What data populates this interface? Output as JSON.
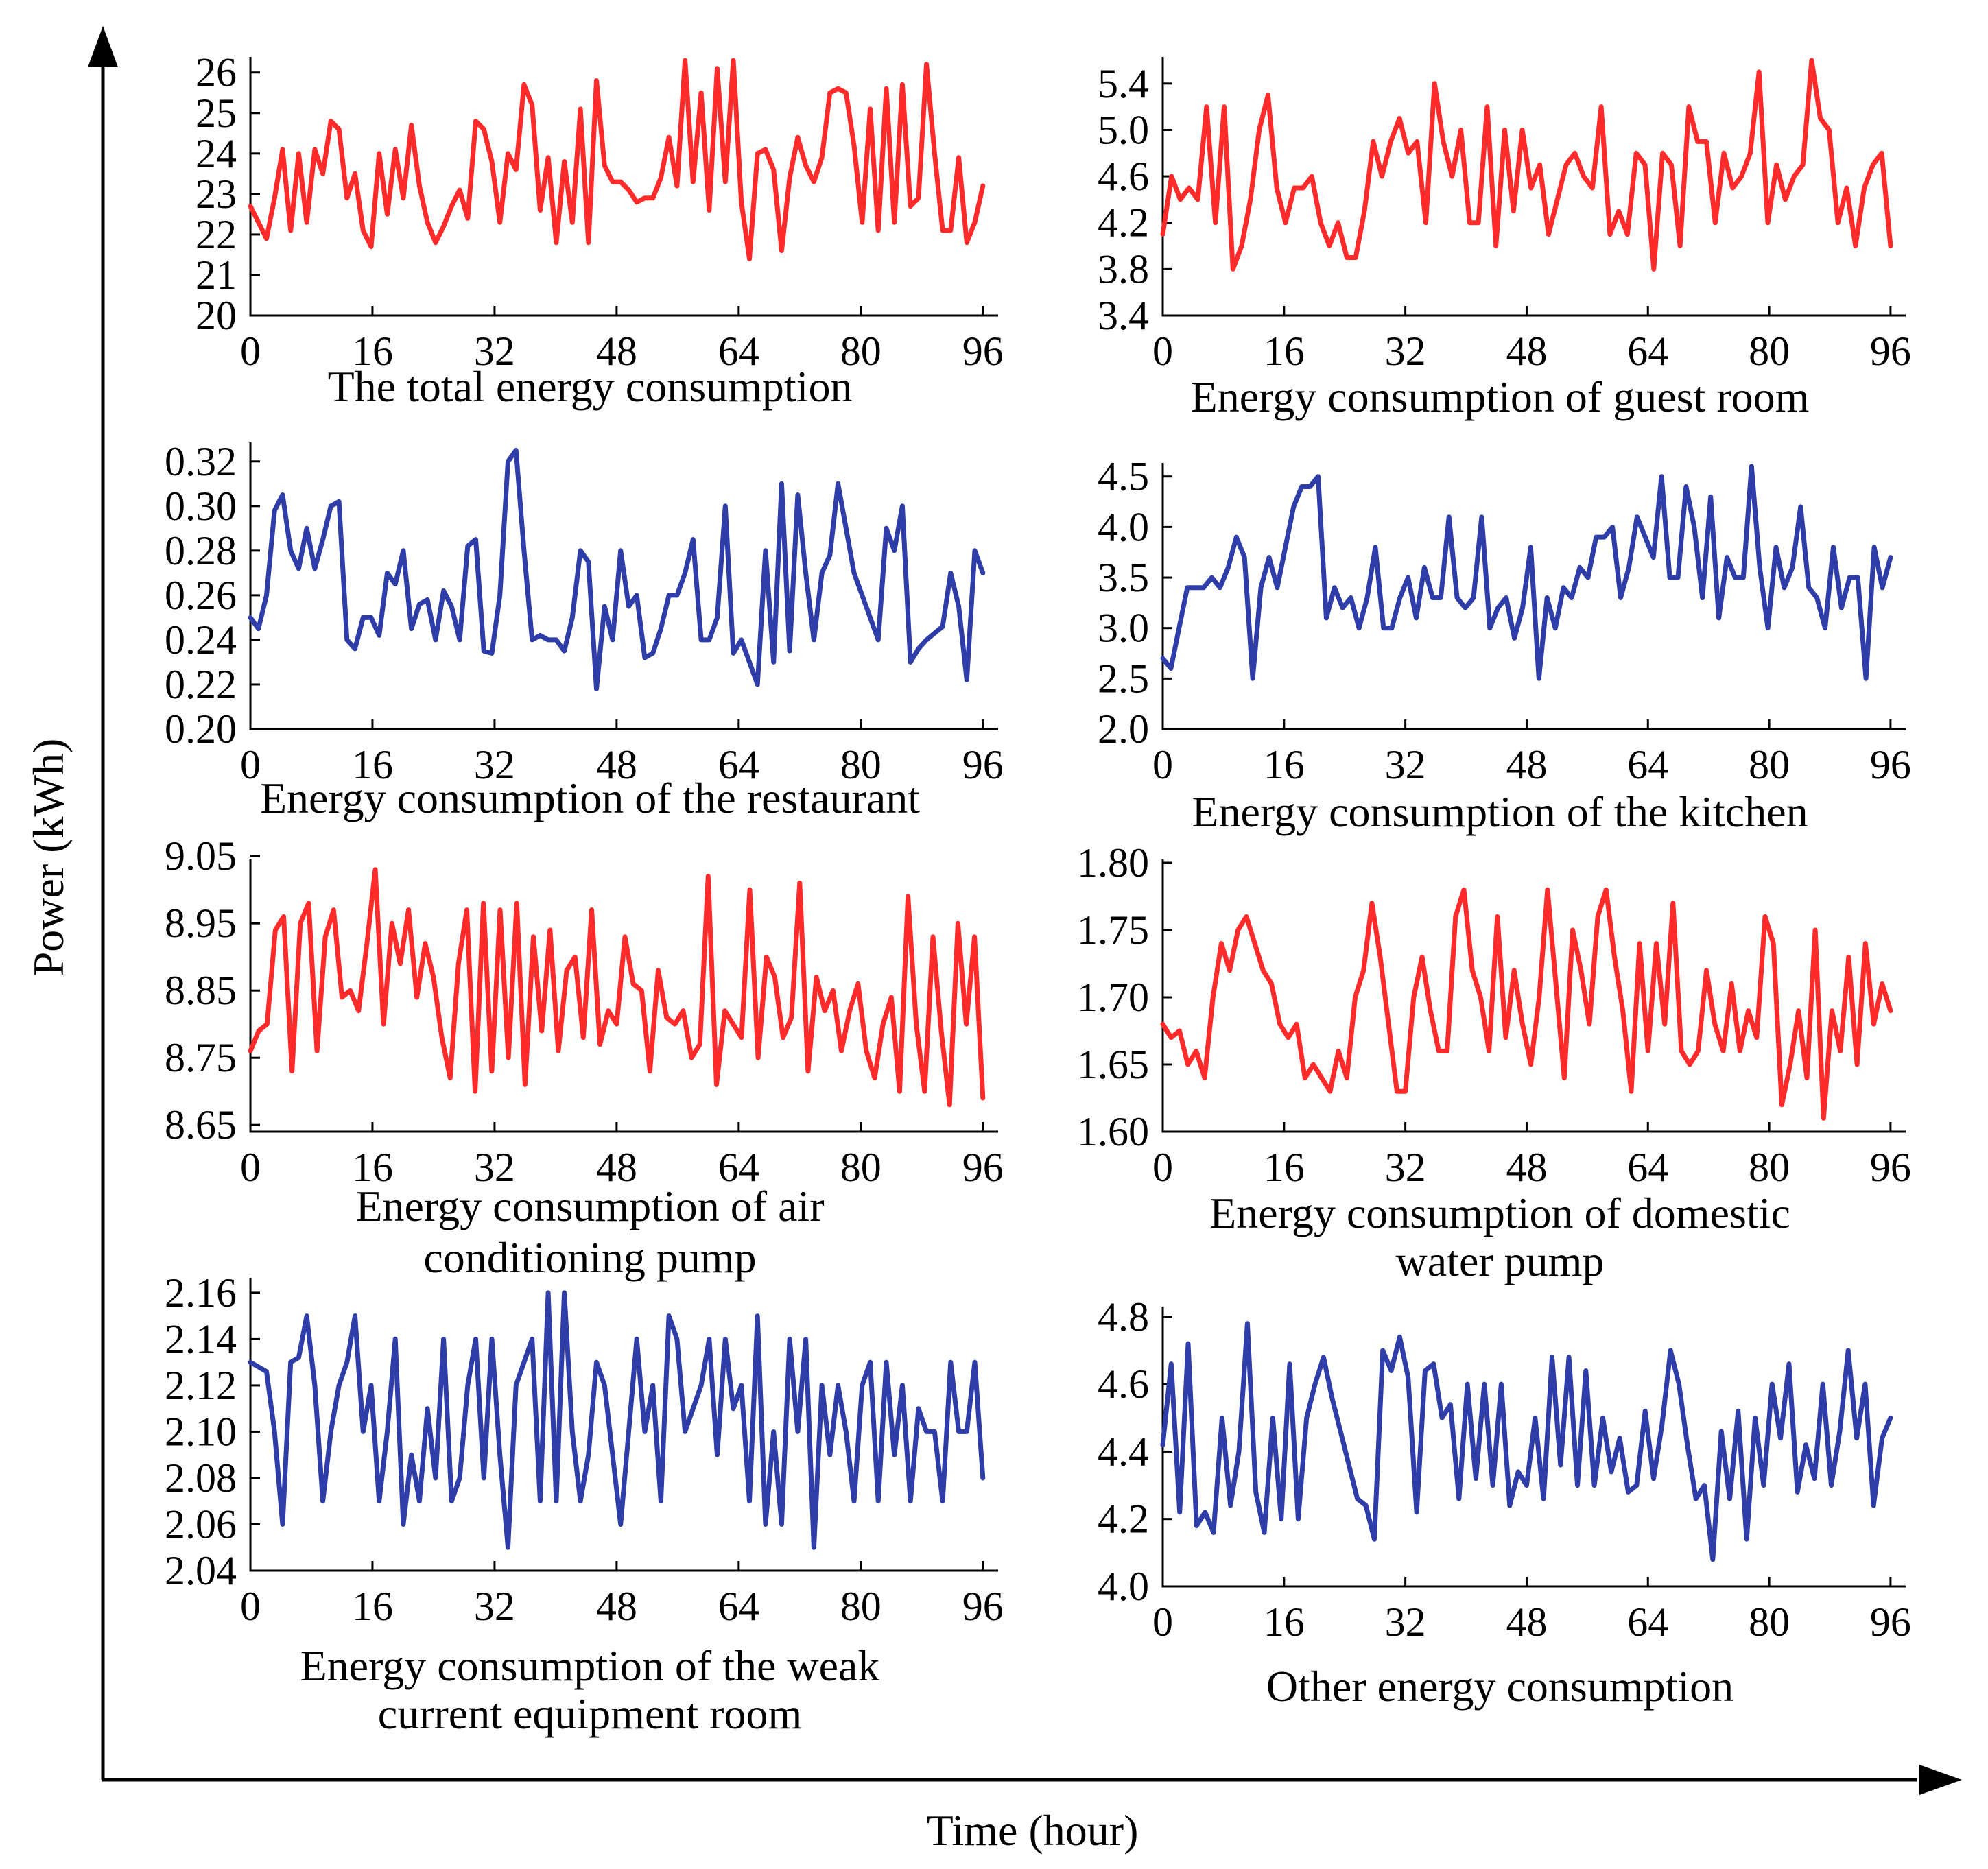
{
  "figure": {
    "ylabel": "Power (kWh)",
    "xlabel": "Time (hour)"
  },
  "colors": {
    "red": "#ff2b2b",
    "blue": "#2e3da8"
  },
  "chart_data": [
    {
      "type": "line",
      "title": [
        "The total energy consumption"
      ],
      "color": "red",
      "xlim": [
        0,
        98
      ],
      "ylim": [
        20,
        26.3
      ],
      "xticks": [
        "0",
        "16",
        "32",
        "48",
        "64",
        "80",
        "96"
      ],
      "yticks": [
        "20",
        "21",
        "22",
        "23",
        "24",
        "25",
        "26"
      ],
      "values": [
        22.7,
        22.3,
        21.9,
        22.9,
        24.1,
        22.1,
        24.0,
        22.3,
        24.1,
        23.5,
        24.8,
        24.6,
        22.9,
        23.5,
        22.1,
        21.7,
        24.0,
        22.5,
        24.1,
        22.9,
        24.7,
        23.2,
        22.3,
        21.8,
        22.2,
        22.7,
        23.1,
        22.4,
        24.8,
        24.6,
        23.8,
        22.3,
        24.0,
        23.6,
        25.7,
        25.2,
        22.6,
        23.9,
        21.8,
        23.8,
        22.3,
        25.1,
        21.8,
        25.8,
        23.7,
        23.3,
        23.3,
        23.1,
        22.8,
        22.9,
        22.9,
        23.4,
        24.4,
        23.2,
        26.3,
        23.3,
        25.5,
        22.6,
        26.1,
        23.3,
        26.3,
        22.8,
        21.4,
        24.0,
        24.1,
        23.6,
        21.6,
        23.4,
        24.4,
        23.7,
        23.3,
        23.9,
        25.5,
        25.6,
        25.5,
        24.2,
        22.3,
        25.1,
        22.1,
        25.6,
        22.3,
        25.7,
        22.7,
        22.9,
        26.2,
        24.0,
        22.1,
        22.1,
        23.9,
        21.8,
        22.3,
        23.2
      ],
      "panel": [
        197,
        88,
        1455,
        460
      ]
    },
    {
      "type": "line",
      "title": [
        "Energy consumption of guest room"
      ],
      "color": "red",
      "xlim": [
        0,
        98
      ],
      "ylim": [
        3.4,
        5.6
      ],
      "xticks": [
        "0",
        "16",
        "32",
        "48",
        "64",
        "80",
        "96"
      ],
      "yticks": [
        "3.4",
        "3.8",
        "4.2",
        "4.6",
        "5.0",
        "5.4"
      ],
      "values": [
        4.1,
        4.6,
        4.4,
        4.5,
        4.4,
        5.2,
        4.2,
        5.2,
        3.8,
        4.0,
        4.4,
        5.0,
        5.3,
        4.5,
        4.2,
        4.5,
        4.5,
        4.6,
        4.2,
        4.0,
        4.2,
        3.9,
        3.9,
        4.3,
        4.9,
        4.6,
        4.9,
        5.1,
        4.8,
        4.9,
        4.2,
        5.4,
        4.9,
        4.6,
        5.0,
        4.2,
        4.2,
        5.2,
        4.0,
        5.0,
        4.3,
        5.0,
        4.5,
        4.7,
        4.1,
        4.4,
        4.7,
        4.8,
        4.6,
        4.5,
        5.2,
        4.1,
        4.3,
        4.1,
        4.8,
        4.7,
        3.8,
        4.8,
        4.7,
        4.0,
        5.2,
        4.9,
        4.9,
        4.2,
        4.8,
        4.5,
        4.6,
        4.8,
        5.5,
        4.2,
        4.7,
        4.4,
        4.6,
        4.7,
        5.6,
        5.1,
        5.0,
        4.2,
        4.5,
        4.0,
        4.5,
        4.7,
        4.8,
        4.0
      ],
      "panel": [
        1695,
        88,
        2778,
        460
      ]
    },
    {
      "type": "line",
      "title": [
        "Energy consumption of the restaurant"
      ],
      "color": "blue",
      "xlim": [
        0,
        98
      ],
      "ylim": [
        0.2,
        0.327
      ],
      "xticks": [
        "0",
        "16",
        "32",
        "48",
        "64",
        "80",
        "96"
      ],
      "yticks": [
        "0.20",
        "0.22",
        "0.24",
        "0.26",
        "0.28",
        "0.30",
        "0.32"
      ],
      "values": [
        0.25,
        0.245,
        0.26,
        0.298,
        0.305,
        0.28,
        0.272,
        0.29,
        0.272,
        0.285,
        0.3,
        0.302,
        0.24,
        0.236,
        0.25,
        0.25,
        0.242,
        0.27,
        0.265,
        0.28,
        0.245,
        0.256,
        0.258,
        0.24,
        0.262,
        0.255,
        0.24,
        0.282,
        0.285,
        0.235,
        0.234,
        0.26,
        0.32,
        0.325,
        0.28,
        0.24,
        0.242,
        0.24,
        0.24,
        0.235,
        0.25,
        0.28,
        0.275,
        0.218,
        0.255,
        0.24,
        0.28,
        0.255,
        0.26,
        0.232,
        0.234,
        0.245,
        0.26,
        0.26,
        0.27,
        0.285,
        0.24,
        0.24,
        0.25,
        0.3,
        0.234,
        0.24,
        0.23,
        0.22,
        0.28,
        0.23,
        0.31,
        0.235,
        0.305,
        0.27,
        0.24,
        0.27,
        0.278,
        0.31,
        0.29,
        0.27,
        0.26,
        0.25,
        0.24,
        0.29,
        0.28,
        0.3,
        0.23,
        0.236,
        0.24,
        0.243,
        0.246,
        0.27,
        0.255,
        0.222,
        0.28,
        0.27
      ],
      "panel": [
        197,
        650,
        1455,
        1063
      ]
    },
    {
      "type": "line",
      "title": [
        "Energy consumption of the kitchen"
      ],
      "color": "blue",
      "xlim": [
        0,
        98
      ],
      "ylim": [
        2.0,
        4.6
      ],
      "xticks": [
        "0",
        "16",
        "32",
        "48",
        "64",
        "80",
        "96"
      ],
      "yticks": [
        "2.0",
        "2.5",
        "3.0",
        "3.5",
        "4.0",
        "4.5"
      ],
      "values": [
        2.7,
        2.6,
        3.0,
        3.4,
        3.4,
        3.4,
        3.5,
        3.4,
        3.6,
        3.9,
        3.7,
        2.5,
        3.4,
        3.7,
        3.4,
        3.8,
        4.2,
        4.4,
        4.4,
        4.5,
        3.1,
        3.4,
        3.2,
        3.3,
        3.0,
        3.3,
        3.8,
        3.0,
        3.0,
        3.3,
        3.5,
        3.1,
        3.6,
        3.3,
        3.3,
        4.1,
        3.3,
        3.2,
        3.3,
        4.1,
        3.0,
        3.2,
        3.3,
        2.9,
        3.2,
        3.8,
        2.5,
        3.3,
        3.0,
        3.4,
        3.3,
        3.6,
        3.5,
        3.9,
        3.9,
        4.0,
        3.3,
        3.6,
        4.1,
        3.9,
        3.7,
        4.5,
        3.5,
        3.5,
        4.4,
        4.0,
        3.3,
        4.3,
        3.1,
        3.7,
        3.5,
        3.5,
        4.6,
        3.6,
        3.0,
        3.8,
        3.4,
        3.6,
        4.2,
        3.4,
        3.3,
        3.0,
        3.8,
        3.2,
        3.5,
        3.5,
        2.5,
        3.8,
        3.4,
        3.7
      ],
      "panel": [
        1695,
        680,
        2778,
        1063
      ]
    },
    {
      "type": "line",
      "title": [
        "Energy consumption of air",
        "conditioning pump"
      ],
      "color": "red",
      "xlim": [
        0,
        98
      ],
      "ylim": [
        8.64,
        9.04
      ],
      "xticks": [
        "0",
        "16",
        "32",
        "48",
        "64",
        "80",
        "96"
      ],
      "yticks": [
        "8.65",
        "8.75",
        "8.85",
        "8.95",
        "9.05"
      ],
      "values": [
        8.76,
        8.79,
        8.8,
        8.94,
        8.96,
        8.73,
        8.95,
        8.98,
        8.76,
        8.93,
        8.97,
        8.84,
        8.85,
        8.82,
        8.92,
        9.03,
        8.8,
        8.95,
        8.89,
        8.97,
        8.84,
        8.92,
        8.87,
        8.78,
        8.72,
        8.89,
        8.97,
        8.7,
        8.98,
        8.73,
        8.97,
        8.75,
        8.98,
        8.71,
        8.93,
        8.79,
        8.94,
        8.76,
        8.88,
        8.9,
        8.78,
        8.97,
        8.77,
        8.82,
        8.8,
        8.93,
        8.86,
        8.85,
        8.73,
        8.88,
        8.81,
        8.8,
        8.82,
        8.75,
        8.77,
        9.02,
        8.71,
        8.82,
        8.8,
        8.78,
        9.0,
        8.75,
        8.9,
        8.87,
        8.78,
        8.81,
        9.01,
        8.73,
        8.87,
        8.82,
        8.85,
        8.76,
        8.82,
        8.86,
        8.76,
        8.72,
        8.8,
        8.84,
        8.7,
        8.99,
        8.8,
        8.7,
        8.93,
        8.79,
        8.68,
        8.95,
        8.8,
        8.93,
        8.69
      ],
      "panel": [
        197,
        1258,
        1455,
        1650
      ]
    },
    {
      "type": "line",
      "title": [
        "Energy consumption of domestic",
        "water pump"
      ],
      "color": "red",
      "xlim": [
        0,
        98
      ],
      "ylim": [
        1.6,
        1.8
      ],
      "xticks": [
        "0",
        "16",
        "32",
        "48",
        "64",
        "80",
        "96"
      ],
      "yticks": [
        "1.60",
        "1.65",
        "1.70",
        "1.75",
        "1.80"
      ],
      "values": [
        1.68,
        1.67,
        1.675,
        1.65,
        1.66,
        1.64,
        1.7,
        1.74,
        1.72,
        1.75,
        1.76,
        1.74,
        1.72,
        1.71,
        1.68,
        1.67,
        1.68,
        1.64,
        1.65,
        1.64,
        1.63,
        1.66,
        1.64,
        1.7,
        1.72,
        1.77,
        1.73,
        1.68,
        1.63,
        1.63,
        1.7,
        1.73,
        1.69,
        1.66,
        1.66,
        1.76,
        1.78,
        1.72,
        1.7,
        1.66,
        1.76,
        1.67,
        1.72,
        1.68,
        1.65,
        1.7,
        1.78,
        1.71,
        1.64,
        1.75,
        1.72,
        1.68,
        1.76,
        1.78,
        1.73,
        1.69,
        1.63,
        1.74,
        1.66,
        1.74,
        1.68,
        1.77,
        1.66,
        1.65,
        1.66,
        1.72,
        1.68,
        1.66,
        1.71,
        1.66,
        1.69,
        1.67,
        1.76,
        1.74,
        1.62,
        1.65,
        1.69,
        1.64,
        1.75,
        1.61,
        1.69,
        1.66,
        1.73,
        1.65,
        1.74,
        1.68,
        1.71,
        1.69
      ],
      "panel": [
        1695,
        1258,
        2778,
        1650
      ]
    },
    {
      "type": "line",
      "title": [
        "Energy consumption of the weak",
        "current equipment room"
      ],
      "color": "blue",
      "xlim": [
        0,
        98
      ],
      "ylim": [
        2.04,
        2.165
      ],
      "xticks": [
        "0",
        "16",
        "32",
        "48",
        "64",
        "80",
        "96"
      ],
      "yticks": [
        "2.04",
        "2.06",
        "2.08",
        "2.10",
        "2.12",
        "2.14",
        "2.16"
      ],
      "values": [
        2.13,
        2.128,
        2.126,
        2.1,
        2.06,
        2.13,
        2.132,
        2.15,
        2.12,
        2.07,
        2.1,
        2.12,
        2.13,
        2.15,
        2.1,
        2.12,
        2.07,
        2.1,
        2.14,
        2.06,
        2.09,
        2.07,
        2.11,
        2.08,
        2.14,
        2.07,
        2.08,
        2.12,
        2.14,
        2.08,
        2.14,
        2.09,
        2.05,
        2.12,
        2.13,
        2.14,
        2.07,
        2.16,
        2.07,
        2.16,
        2.1,
        2.07,
        2.09,
        2.13,
        2.12,
        2.09,
        2.06,
        2.1,
        2.14,
        2.1,
        2.12,
        2.07,
        2.15,
        2.14,
        2.1,
        2.11,
        2.12,
        2.14,
        2.09,
        2.14,
        2.11,
        2.12,
        2.07,
        2.15,
        2.06,
        2.1,
        2.06,
        2.14,
        2.1,
        2.14,
        2.05,
        2.12,
        2.09,
        2.12,
        2.1,
        2.07,
        2.12,
        2.13,
        2.07,
        2.13,
        2.09,
        2.12,
        2.07,
        2.11,
        2.1,
        2.1,
        2.07,
        2.13,
        2.1,
        2.1,
        2.13,
        2.08
      ],
      "panel": [
        197,
        1868,
        1455,
        2290
      ]
    },
    {
      "type": "line",
      "title": [
        "Other energy consumption"
      ],
      "color": "blue",
      "xlim": [
        0,
        98
      ],
      "ylim": [
        4.0,
        4.82
      ],
      "xticks": [
        "0",
        "16",
        "32",
        "48",
        "64",
        "80",
        "96"
      ],
      "yticks": [
        "4.0",
        "4.2",
        "4.4",
        "4.6",
        "4.8"
      ],
      "values": [
        4.42,
        4.66,
        4.22,
        4.72,
        4.18,
        4.22,
        4.16,
        4.5,
        4.24,
        4.4,
        4.78,
        4.28,
        4.16,
        4.5,
        4.2,
        4.66,
        4.2,
        4.5,
        4.6,
        4.68,
        4.56,
        4.46,
        4.36,
        4.26,
        4.24,
        4.14,
        4.7,
        4.64,
        4.74,
        4.62,
        4.22,
        4.64,
        4.66,
        4.5,
        4.54,
        4.26,
        4.6,
        4.32,
        4.6,
        4.3,
        4.6,
        4.24,
        4.34,
        4.3,
        4.5,
        4.26,
        4.68,
        4.36,
        4.68,
        4.3,
        4.64,
        4.3,
        4.5,
        4.34,
        4.44,
        4.28,
        4.3,
        4.52,
        4.32,
        4.48,
        4.7,
        4.6,
        4.42,
        4.26,
        4.3,
        4.08,
        4.46,
        4.26,
        4.52,
        4.14,
        4.5,
        4.3,
        4.6,
        4.44,
        4.66,
        4.28,
        4.42,
        4.32,
        4.6,
        4.3,
        4.46,
        4.7,
        4.44,
        4.6,
        4.24,
        4.44,
        4.5
      ],
      "panel": [
        1695,
        1910,
        2778,
        2313
      ]
    }
  ]
}
